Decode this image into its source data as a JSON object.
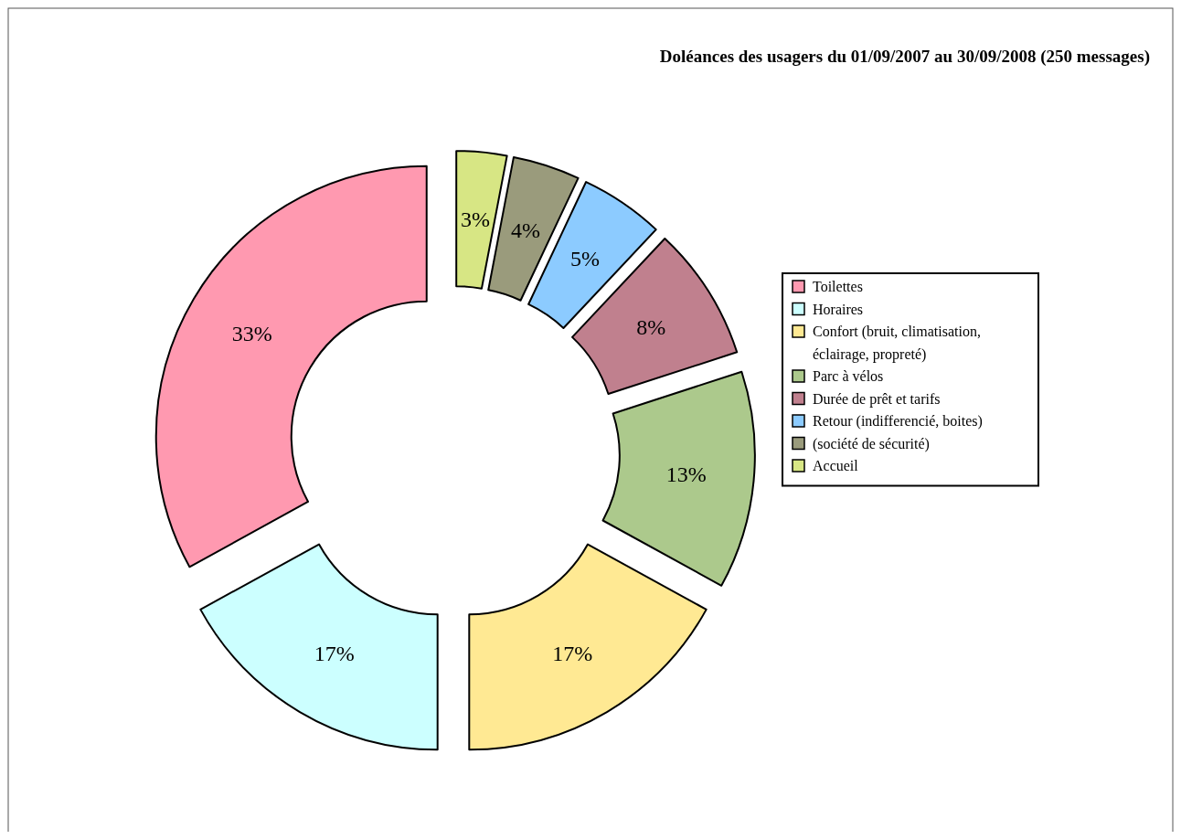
{
  "chart_data": {
    "type": "donut",
    "title": "Doléances des usagers du 01/09/2007 au 30/09/2008 (250 messages)",
    "categories": [
      "Toilettes",
      "Horaires",
      "Confort (bruit, climatisation, éclairage, propreté)",
      "Parc à vélos",
      "Durée de prêt et tarifs",
      "Retour (indifferencié, boites)",
      "(société de sécurité)",
      "Accueil"
    ],
    "values": [
      33,
      17,
      17,
      13,
      8,
      5,
      4,
      3
    ],
    "colors": [
      "#ff99b0",
      "#ccffff",
      "#ffe993",
      "#acc98c",
      "#c0808e",
      "#8ccbff",
      "#9a9b7c",
      "#d7e684"
    ],
    "value_labels": [
      "33%",
      "17%",
      "17%",
      "13%",
      "8%",
      "5%",
      "4%",
      "3%"
    ],
    "legend": "right"
  }
}
